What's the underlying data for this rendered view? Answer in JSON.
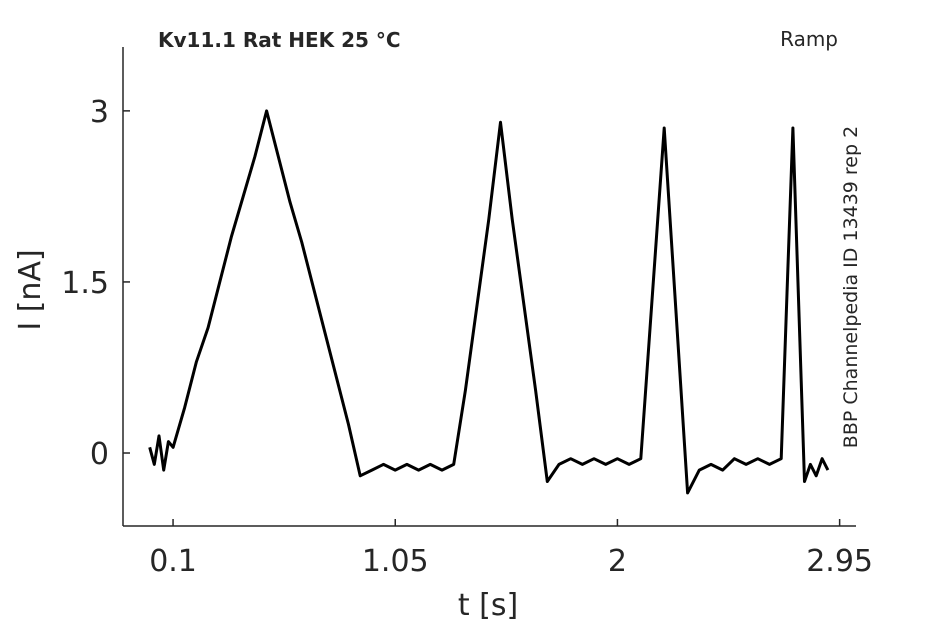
{
  "chart_data": {
    "type": "line",
    "title": "Kv11.1  Rat  HEK  25 °C",
    "subtitle": "Ramp",
    "annotation": "BBP Channelpedia ID 13439 rep 2",
    "x_label": "t [s]",
    "y_label": "I [nA]",
    "x": [
      0,
      0.02,
      0.04,
      0.06,
      0.08,
      0.1,
      0.15,
      0.2,
      0.25,
      0.3,
      0.35,
      0.4,
      0.45,
      0.5,
      0.55,
      0.6,
      0.65,
      0.7,
      0.75,
      0.8,
      0.85,
      0.9,
      0.95,
      1.0,
      1.05,
      1.1,
      1.15,
      1.2,
      1.25,
      1.3,
      1.35,
      1.4,
      1.45,
      1.5,
      1.55,
      1.6,
      1.65,
      1.7,
      1.75,
      1.8,
      1.85,
      1.9,
      1.95,
      2.0,
      2.05,
      2.1,
      2.15,
      2.2,
      2.25,
      2.3,
      2.35,
      2.4,
      2.45,
      2.5,
      2.55,
      2.6,
      2.65,
      2.7,
      2.725,
      2.75,
      2.775,
      2.8,
      2.825,
      2.85,
      2.875,
      2.9
    ],
    "series": [
      {
        "name": "I",
        "color": "#000000",
        "values": [
          0.05,
          -0.1,
          0.15,
          -0.15,
          0.1,
          0.05,
          0.4,
          0.8,
          1.1,
          1.5,
          1.9,
          2.25,
          2.6,
          3.0,
          2.6,
          2.2,
          1.85,
          1.45,
          1.05,
          0.65,
          0.25,
          -0.2,
          -0.15,
          -0.1,
          -0.15,
          -0.1,
          -0.15,
          -0.1,
          -0.15,
          -0.1,
          0.55,
          1.3,
          2.05,
          2.9,
          2.05,
          1.3,
          0.55,
          -0.25,
          -0.1,
          -0.05,
          -0.1,
          -0.05,
          -0.1,
          -0.05,
          -0.1,
          -0.05,
          1.4,
          2.85,
          1.25,
          -0.35,
          -0.15,
          -0.1,
          -0.15,
          -0.05,
          -0.1,
          -0.05,
          -0.1,
          -0.05,
          1.4,
          2.85,
          1.3,
          -0.25,
          -0.1,
          -0.2,
          -0.05,
          -0.15
        ]
      }
    ],
    "xlim": [
      -0.114,
      3.02
    ],
    "ylim": [
      -0.64,
      3.56
    ],
    "xticks": [
      0.1,
      1.05,
      2,
      2.95
    ],
    "yticks": [
      0,
      1.5,
      3
    ],
    "grid": false
  }
}
